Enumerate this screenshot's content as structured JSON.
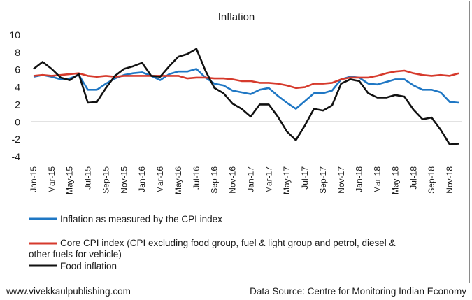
{
  "chart_data": {
    "type": "line",
    "title": "Inflation",
    "xlabel": "",
    "ylabel": "",
    "ylim": [
      -4,
      10
    ],
    "y_ticks": [
      "10",
      "8",
      "6",
      "4",
      "2",
      "0",
      "-2",
      "-4"
    ],
    "y_tick_values": [
      10,
      8,
      6,
      4,
      2,
      0,
      -2,
      -4
    ],
    "x": [
      "Jan-15",
      "Feb-15",
      "Mar-15",
      "Apr-15",
      "May-15",
      "Jun-15",
      "Jul-15",
      "Aug-15",
      "Sep-15",
      "Oct-15",
      "Nov-15",
      "Dec-15",
      "Jan-16",
      "Feb-16",
      "Mar-16",
      "Apr-16",
      "May-16",
      "Jun-16",
      "Jul-16",
      "Aug-16",
      "Sep-16",
      "Oct-16",
      "Nov-16",
      "Dec-16",
      "Jan-17",
      "Feb-17",
      "Mar-17",
      "Apr-17",
      "May-17",
      "Jun-17",
      "Jul-17",
      "Aug-17",
      "Sep-17",
      "Oct-17",
      "Nov-17",
      "Dec-17",
      "Jan-18",
      "Feb-18",
      "Mar-18",
      "Apr-18",
      "May-18",
      "Jun-18",
      "Jul-18",
      "Aug-18",
      "Sep-18",
      "Oct-18",
      "Nov-18",
      "Dec-18"
    ],
    "x_tick_labels": [
      "Jan-15",
      "Mar-15",
      "May-15",
      "Jul-15",
      "Sep-15",
      "Nov-15",
      "Jan-16",
      "Mar-16",
      "May-16",
      "Jul-16",
      "Sep-16",
      "Nov-16",
      "Jan-17",
      "Mar-17",
      "May-17",
      "Jul-17",
      "Sep-17",
      "Nov-17",
      "Jan-18",
      "Mar-18",
      "May-18",
      "Jul-18",
      "Sep-18",
      "Nov-18"
    ],
    "grid": false,
    "legend_position": "bottom",
    "series": [
      {
        "name": "Inflation as measured by the CPI index",
        "color": "#1f77c4",
        "values": [
          5.2,
          5.4,
          5.2,
          4.9,
          5.0,
          5.4,
          3.7,
          3.7,
          4.4,
          5.0,
          5.4,
          5.6,
          5.7,
          5.3,
          4.8,
          5.5,
          5.8,
          5.8,
          6.1,
          5.1,
          4.4,
          4.2,
          3.6,
          3.4,
          3.2,
          3.7,
          3.9,
          3.0,
          2.2,
          1.5,
          2.4,
          3.3,
          3.3,
          3.6,
          4.9,
          5.2,
          5.1,
          4.4,
          4.3,
          4.6,
          4.9,
          4.9,
          4.2,
          3.7,
          3.7,
          3.4,
          2.3,
          2.2
        ]
      },
      {
        "name": "Core CPI index  (CPI excluding food  group, fuel & light  group and petrol,  diesel & other fuels  for vehicle)",
        "name_line1": "Core CPI index  (CPI excluding food  group, fuel & light  group and petrol,  diesel &",
        "name_line2": "other fuels  for vehicle)",
        "color": "#d63a2c",
        "values": [
          5.3,
          5.4,
          5.3,
          5.4,
          5.5,
          5.6,
          5.3,
          5.2,
          5.3,
          5.2,
          5.3,
          5.3,
          5.3,
          5.3,
          5.3,
          5.3,
          5.3,
          5.0,
          5.1,
          5.1,
          5.0,
          5.0,
          4.9,
          4.7,
          4.7,
          4.5,
          4.5,
          4.4,
          4.2,
          3.9,
          4.0,
          4.4,
          4.4,
          4.5,
          4.9,
          5.1,
          5.1,
          5.1,
          5.3,
          5.6,
          5.8,
          5.9,
          5.6,
          5.4,
          5.3,
          5.4,
          5.3,
          5.6
        ]
      },
      {
        "name": "Food inflation",
        "color": "#111111",
        "values": [
          6.1,
          6.9,
          6.1,
          5.1,
          4.8,
          5.5,
          2.2,
          2.3,
          3.9,
          5.3,
          6.1,
          6.4,
          6.8,
          5.3,
          5.2,
          6.4,
          7.5,
          7.8,
          8.4,
          5.9,
          3.9,
          3.3,
          2.1,
          1.5,
          0.6,
          2.0,
          2.0,
          0.6,
          -1.1,
          -2.1,
          -0.4,
          1.5,
          1.3,
          1.9,
          4.4,
          4.9,
          4.7,
          3.3,
          2.8,
          2.8,
          3.1,
          2.9,
          1.4,
          0.3,
          0.5,
          -0.9,
          -2.6,
          -2.5
        ]
      }
    ]
  },
  "footer": {
    "website": "www.vivekkaulpublishing.com",
    "source": "Data Source: Centre for Monitoring Indian Economy"
  }
}
